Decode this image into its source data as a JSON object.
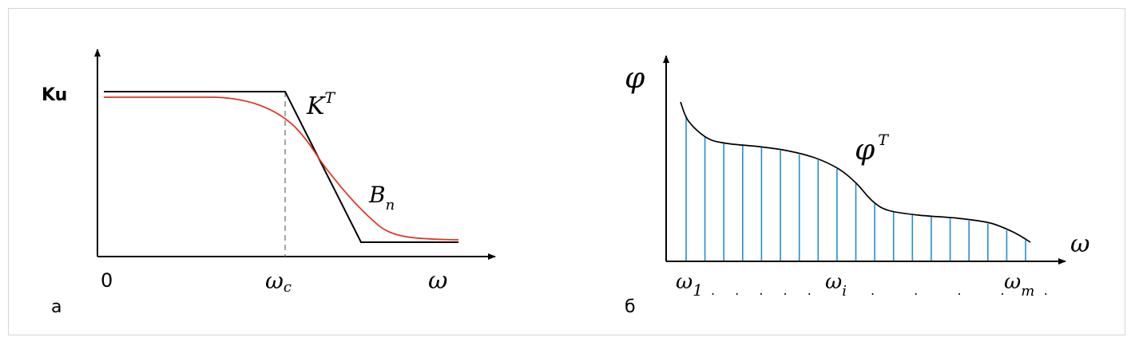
{
  "panel_a": {
    "caption": "а",
    "y_label": "Ku",
    "origin_label": "0",
    "wc_symbol": "ω",
    "wc_sub": "c",
    "x_label": "ω",
    "curve_kt_symbol": "K",
    "curve_kt_sup": "T",
    "curve_b_symbol": "B",
    "curve_b_sub": "n",
    "colors": {
      "axes": "#000000",
      "kt_curve": "#000000",
      "b_curve": "#e0301e",
      "dashed": "#888888"
    }
  },
  "panel_b": {
    "caption": "б",
    "y_label": "φ",
    "x_label": "ω",
    "curve_symbol": "φ",
    "curve_sup": "T",
    "tick_w1_symbol": "ω",
    "tick_w1_sub": "1",
    "tick_wi_symbol": "ω",
    "tick_wi_sub": "i",
    "tick_wm_symbol": "ω",
    "tick_wm_sub": "m",
    "dots_left": ". . . . .",
    "dots_right": ". . . . .",
    "colors": {
      "axes": "#000000",
      "curve": "#000000",
      "sample_lines": "#1f8fd0"
    }
  }
}
